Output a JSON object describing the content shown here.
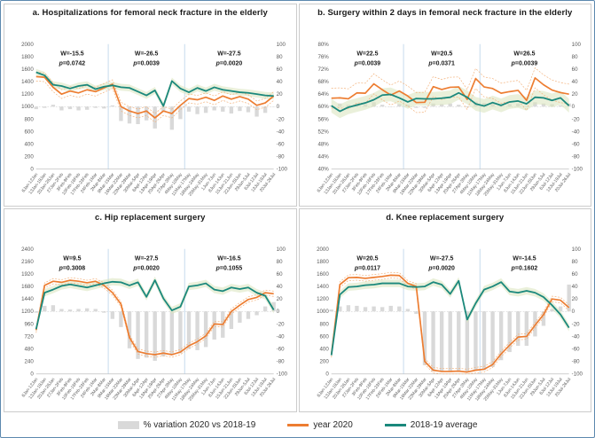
{
  "legend": {
    "items": [
      {
        "label": "% variation 2020 vs 2018-19",
        "swatch": "bar"
      },
      {
        "label": "year 2020",
        "swatch": "line-orange"
      },
      {
        "label": "2018-19 average",
        "swatch": "line-teal"
      }
    ]
  },
  "colors": {
    "bar_fill": "#d9d9d9",
    "year_2020": "#ED7D31",
    "year_2020_ci": "#f3b27c",
    "avg_2018_19": "#1a887c",
    "avg_band": "#d8e4bc",
    "divider": "#b8d2e8",
    "axis_text": "#595959",
    "stats_text": "#1a1a1a"
  },
  "categories": [
    "6Jan-12Jan",
    "13Jan-19Jan",
    "20Jan-26Jan",
    "27Jan-2Feb",
    "3Feb-9Feb",
    "10Feb-16Feb",
    "17Feb-23Feb",
    "24Feb-1Mar",
    "2Mar-8Mar",
    "9Mar-15Mar",
    "16Mar-22Mar",
    "23Mar-29Mar",
    "30Mar-5Apr",
    "6Apr-12Apr",
    "13Apr-19Apr",
    "20Apr-26Apr",
    "27Apr-3May",
    "4May-10May",
    "11May-17May",
    "18May-24May",
    "25May-31May",
    "1Jun-7Jun",
    "8Jun-14Jun",
    "15Jun-21Jun",
    "22Jun-28Jun",
    "29Jun-5Jul",
    "6Jul-12Jul",
    "13Jul-19Jul",
    "20Jul-26Jul"
  ],
  "chart_data": [
    {
      "type": "bar+line combo",
      "title": "a. Hospitalizations for femoral neck fracture in the elderly",
      "left_axis": {
        "min": 0,
        "max": 2000,
        "step": 200,
        "suffix": ""
      },
      "right_axis": {
        "min": -100,
        "max": 100,
        "step": 20
      },
      "segments": [
        {
          "w": "W=-15.5",
          "p": "p=0.0742"
        },
        {
          "w": "W=-26.5",
          "p": "p=0.0039"
        },
        {
          "w": "W=-27.5",
          "p": "p=0.0020"
        }
      ],
      "segment_centers": [
        4.25,
        13,
        22.75
      ],
      "dividers": [
        8.5,
        17.5
      ],
      "band_halfwidth": 55,
      "ci_halfwidth": 70,
      "series": {
        "variation_pct": [
          -4,
          -2,
          3,
          -6,
          -4,
          -6,
          -5,
          -2,
          -3,
          2,
          -23,
          -27,
          -28,
          -22,
          -35,
          -8,
          -37,
          -20,
          -8,
          -12,
          -10,
          -6,
          -8,
          -11,
          -7,
          -9,
          -16,
          -10,
          0
        ],
        "year_2020": [
          1480,
          1470,
          1310,
          1200,
          1250,
          1220,
          1270,
          1240,
          1300,
          1360,
          1000,
          930,
          890,
          930,
          820,
          930,
          890,
          1020,
          1130,
          1110,
          1150,
          1100,
          1170,
          1120,
          1160,
          1120,
          1020,
          1060,
          1170
        ],
        "avg_2018_19": [
          1550,
          1500,
          1350,
          1330,
          1290,
          1330,
          1350,
          1280,
          1320,
          1340,
          1310,
          1300,
          1240,
          1180,
          1260,
          1010,
          1410,
          1290,
          1230,
          1300,
          1250,
          1310,
          1270,
          1250,
          1230,
          1220,
          1200,
          1180,
          1170
        ]
      }
    },
    {
      "type": "bar+line combo",
      "title": "b. Surgery within 2 days in femoral neck fracture in the elderly",
      "left_axis": {
        "min": 40,
        "max": 80,
        "step": 4,
        "suffix": "%"
      },
      "right_axis": {
        "min": -100,
        "max": 100,
        "step": 20
      },
      "segments": [
        {
          "w": "W=22.5",
          "p": "p=0.0039"
        },
        {
          "w": "W=20.5",
          "p": "p=0.0371"
        },
        {
          "w": "W=26.5",
          "p": "p=0.0039"
        }
      ],
      "segment_centers": [
        4.25,
        13,
        22.75
      ],
      "dividers": [
        8.5,
        17.5
      ],
      "band_halfwidth": 2.2,
      "ci_halfwidth": 3.2,
      "series": {
        "variation_pct": [
          2,
          5,
          3,
          5,
          4,
          7,
          3,
          0,
          4,
          3,
          -2,
          -2,
          5,
          4,
          5,
          3,
          -1,
          8,
          6,
          5,
          4,
          4,
          5,
          1,
          7,
          5,
          4,
          2,
          5
        ],
        "year_2020": [
          62.7,
          62.8,
          62.5,
          64.4,
          64.3,
          67.3,
          65.4,
          63.7,
          65.0,
          63.4,
          61.3,
          61.4,
          66.4,
          65.5,
          66.2,
          66.3,
          62.3,
          69.0,
          66.3,
          65.8,
          64.3,
          64.8,
          65.2,
          62.0,
          69.2,
          67.0,
          65.3,
          64.5,
          64.0
        ],
        "avg_2018_19": [
          60.3,
          58.5,
          59.8,
          60.5,
          61.2,
          62.2,
          63.7,
          63.9,
          62.8,
          61.5,
          62.6,
          62.5,
          62.5,
          62.7,
          63.0,
          64.4,
          63.0,
          60.9,
          60.2,
          61.3,
          60.4,
          61.5,
          61.8,
          60.9,
          63.0,
          62.8,
          62.0,
          62.8,
          60.3
        ]
      }
    },
    {
      "type": "bar+line combo",
      "title": "c. Hip replacement surgery",
      "left_axis": {
        "min": 0,
        "max": 2400,
        "step": 240,
        "suffix": ""
      },
      "right_axis": {
        "min": -100,
        "max": 100,
        "step": 20
      },
      "segments": [
        {
          "w": "W=9.5",
          "p": "p=0.3008"
        },
        {
          "w": "W=-27.5",
          "p": "p=0.0020"
        },
        {
          "w": "W=-16.5",
          "p": "p=0.1055"
        }
      ],
      "segment_centers": [
        4.25,
        13,
        22.75
      ],
      "dividers": [
        8.5,
        17.5
      ],
      "band_halfwidth": 70,
      "ci_halfwidth": 50,
      "series": {
        "variation_pct": [
          -2,
          9,
          10,
          4,
          3,
          4,
          5,
          4,
          -2,
          -12,
          -25,
          -59,
          -76,
          -74,
          -79,
          -72,
          -70,
          -67,
          -60,
          -62,
          -57,
          -45,
          -42,
          -28,
          -18,
          -12,
          -6,
          8,
          15
        ],
        "year_2020": [
          840,
          1700,
          1780,
          1760,
          1800,
          1780,
          1750,
          1780,
          1700,
          1560,
          1340,
          700,
          430,
          390,
          370,
          400,
          370,
          420,
          540,
          620,
          730,
          960,
          950,
          1200,
          1320,
          1430,
          1470,
          1560,
          1540
        ],
        "avg_2018_19": [
          860,
          1560,
          1620,
          1690,
          1720,
          1690,
          1660,
          1700,
          1740,
          1770,
          1760,
          1700,
          1760,
          1480,
          1800,
          1450,
          1220,
          1290,
          1680,
          1700,
          1740,
          1620,
          1590,
          1660,
          1630,
          1660,
          1560,
          1500,
          1230
        ]
      }
    },
    {
      "type": "bar+line combo",
      "title": "d. Knee replacement surgery",
      "left_axis": {
        "min": 0,
        "max": 2000,
        "step": 200,
        "suffix": ""
      },
      "right_axis": {
        "min": -100,
        "max": 100,
        "step": 20
      },
      "segments": [
        {
          "w": "W=20.5",
          "p": "p=0.0117"
        },
        {
          "w": "W=-27.5",
          "p": "p=0.0020"
        },
        {
          "w": "W=-14.5",
          "p": "p=0.1602"
        }
      ],
      "segment_centers": [
        4.25,
        13,
        22.75
      ],
      "dividers": [
        8.5,
        17.5
      ],
      "band_halfwidth": 60,
      "ci_halfwidth": 45,
      "series": {
        "variation_pct": [
          3,
          8,
          10,
          9,
          7,
          8,
          7,
          9,
          8,
          4,
          -4,
          -86,
          -96,
          -97,
          -97,
          -97,
          -96,
          -95,
          -94,
          -89,
          -78,
          -65,
          -55,
          -55,
          -40,
          -23,
          4,
          8,
          43
        ],
        "year_2020": [
          310,
          1430,
          1540,
          1545,
          1530,
          1545,
          1560,
          1580,
          1575,
          1450,
          1400,
          200,
          60,
          40,
          40,
          45,
          30,
          60,
          75,
          150,
          320,
          460,
          590,
          600,
          780,
          950,
          1200,
          1180,
          1060
        ],
        "avg_2018_19": [
          300,
          1270,
          1390,
          1400,
          1420,
          1430,
          1450,
          1450,
          1450,
          1400,
          1390,
          1400,
          1470,
          1430,
          1280,
          1490,
          870,
          1130,
          1350,
          1400,
          1470,
          1320,
          1300,
          1330,
          1300,
          1230,
          1100,
          950,
          740
        ]
      }
    }
  ]
}
